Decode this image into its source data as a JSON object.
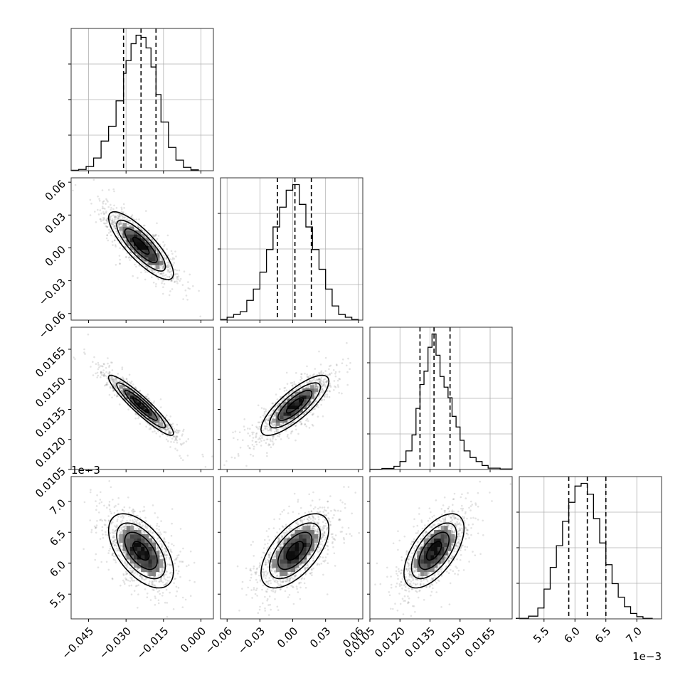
{
  "chart_data": {
    "type": "corner",
    "params": [
      {
        "range": [
          -0.052,
          0.005
        ],
        "ticks": [
          -0.045,
          -0.03,
          -0.015,
          0.0
        ],
        "tick_labels": [
          "−0.045",
          "−0.030",
          "−0.015",
          "0.000"
        ],
        "offset": ""
      },
      {
        "range": [
          -0.066,
          0.064
        ],
        "ticks": [
          -0.06,
          -0.03,
          0.0,
          0.03,
          0.06
        ],
        "tick_labels": [
          "−0.06",
          "−0.03",
          "0.00",
          "0.03",
          "0.06"
        ],
        "offset": ""
      },
      {
        "range": [
          0.0105,
          0.0176
        ],
        "ticks": [
          0.0105,
          0.012,
          0.0135,
          0.015,
          0.0165
        ],
        "tick_labels": [
          "0.0105",
          "0.0120",
          "0.0135",
          "0.0150",
          "0.0165"
        ],
        "offset": ""
      },
      {
        "range": [
          5.1,
          7.4
        ],
        "ticks": [
          5.5,
          6.0,
          6.5,
          7.0
        ],
        "tick_labels": [
          "5.5",
          "6.0",
          "6.5",
          "7.0"
        ],
        "offset": "1e−3"
      }
    ],
    "quantiles": [
      [
        -0.031,
        -0.024,
        -0.018
      ],
      [
        -0.014,
        0.002,
        0.017
      ],
      [
        0.013,
        0.0137,
        0.0145
      ],
      [
        5.9,
        6.2,
        6.5
      ]
    ],
    "histograms": [
      {
        "edges": [
          -0.052,
          -0.049,
          -0.046,
          -0.043,
          -0.04,
          -0.037,
          -0.034,
          -0.031,
          -0.03,
          -0.028,
          -0.026,
          -0.024,
          -0.022,
          -0.02,
          -0.018,
          -0.016,
          -0.013,
          -0.01,
          -0.007,
          -0.004,
          -0.001
        ],
        "counts": [
          1,
          3,
          10,
          30,
          70,
          105,
          165,
          230,
          260,
          300,
          320,
          315,
          290,
          245,
          180,
          115,
          55,
          25,
          8,
          2
        ]
      },
      {
        "edges": [
          -0.066,
          -0.06,
          -0.054,
          -0.048,
          -0.042,
          -0.036,
          -0.03,
          -0.024,
          -0.018,
          -0.012,
          -0.006,
          0.0,
          0.006,
          0.012,
          0.018,
          0.024,
          0.03,
          0.036,
          0.042,
          0.048,
          0.054,
          0.06
        ],
        "counts": [
          2,
          10,
          20,
          30,
          70,
          110,
          170,
          250,
          330,
          400,
          460,
          480,
          410,
          330,
          250,
          180,
          110,
          50,
          20,
          10,
          2
        ]
      },
      {
        "edges": [
          0.0105,
          0.0111,
          0.0117,
          0.012,
          0.0123,
          0.0126,
          0.0128,
          0.013,
          0.0132,
          0.0134,
          0.0136,
          0.0138,
          0.014,
          0.0142,
          0.0144,
          0.0146,
          0.0148,
          0.015,
          0.0152,
          0.0155,
          0.0158,
          0.0161,
          0.0164,
          0.017,
          0.0176
        ],
        "counts": [
          1,
          4,
          12,
          30,
          70,
          130,
          230,
          320,
          370,
          460,
          510,
          430,
          350,
          310,
          270,
          200,
          160,
          110,
          70,
          45,
          30,
          15,
          5,
          2
        ]
      },
      {
        "edges": [
          5.05,
          5.25,
          5.4,
          5.5,
          5.6,
          5.7,
          5.8,
          5.9,
          6.0,
          6.1,
          6.2,
          6.3,
          6.4,
          6.5,
          6.6,
          6.7,
          6.8,
          6.9,
          7.0,
          7.1,
          7.25
        ],
        "counts": [
          2,
          10,
          40,
          110,
          190,
          270,
          360,
          430,
          490,
          500,
          460,
          370,
          280,
          200,
          130,
          80,
          45,
          20,
          8,
          2
        ]
      }
    ],
    "correlations": [
      [
        1.0,
        -0.82,
        -0.93,
        -0.55
      ],
      [
        -0.82,
        1.0,
        0.8,
        0.6
      ],
      [
        -0.93,
        0.8,
        1.0,
        0.6
      ],
      [
        -0.55,
        0.6,
        0.6,
        1.0
      ]
    ],
    "contour_sigmas": [
      0.5,
      1.0,
      1.5,
      2.0
    ],
    "grid": true
  }
}
